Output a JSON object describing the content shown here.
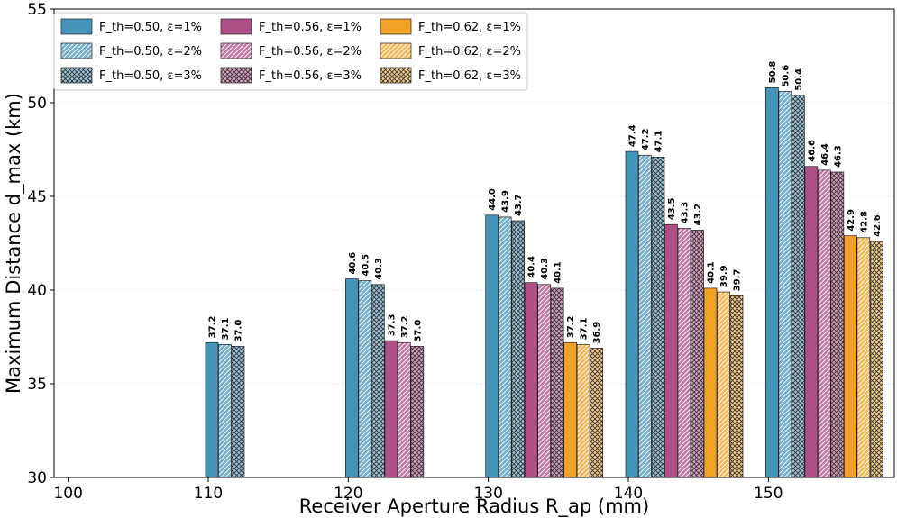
{
  "chart_data": {
    "type": "bar",
    "xlabel": "Receiver Aperture Radius R_ap (mm)",
    "ylabel": "Maximum Distance d_max (km)",
    "ylim": [
      30,
      55
    ],
    "yticks": [
      30,
      35,
      40,
      45,
      50,
      55
    ],
    "categories": [
      "100",
      "110",
      "120",
      "130",
      "140",
      "150"
    ],
    "grid": "horizontal",
    "legend": {
      "placement": "top-left",
      "columns": 3
    },
    "bar_labels": true,
    "series": [
      {
        "name": "F_th=0.50, ε=1%",
        "color": "#4493B8",
        "hatch": "none",
        "values": [
          null,
          37.2,
          40.6,
          44.0,
          47.4,
          50.8
        ]
      },
      {
        "name": "F_th=0.50, ε=2%",
        "color": "#4493B8",
        "hatch": "diag",
        "values": [
          null,
          37.1,
          40.5,
          43.9,
          47.2,
          50.6
        ]
      },
      {
        "name": "F_th=0.50, ε=3%",
        "color": "#4493B8",
        "hatch": "cross",
        "values": [
          null,
          37.0,
          40.3,
          43.7,
          47.1,
          50.4
        ]
      },
      {
        "name": "F_th=0.56, ε=1%",
        "color": "#AE4F86",
        "hatch": "none",
        "values": [
          null,
          null,
          37.3,
          40.4,
          43.5,
          46.6
        ]
      },
      {
        "name": "F_th=0.56, ε=2%",
        "color": "#AE4F86",
        "hatch": "diag",
        "values": [
          null,
          null,
          37.2,
          40.3,
          43.3,
          46.4
        ]
      },
      {
        "name": "F_th=0.56, ε=3%",
        "color": "#AE4F86",
        "hatch": "cross",
        "values": [
          null,
          null,
          37.0,
          40.1,
          43.2,
          46.3
        ]
      },
      {
        "name": "F_th=0.62, ε=1%",
        "color": "#F2A127",
        "hatch": "none",
        "values": [
          null,
          null,
          null,
          37.2,
          40.1,
          42.9
        ]
      },
      {
        "name": "F_th=0.62, ε=2%",
        "color": "#F2A127",
        "hatch": "diag",
        "values": [
          null,
          null,
          null,
          37.1,
          39.9,
          42.8
        ]
      },
      {
        "name": "F_th=0.62, ε=3%",
        "color": "#F2A127",
        "hatch": "cross",
        "values": [
          null,
          null,
          null,
          36.9,
          39.7,
          42.6
        ]
      }
    ]
  }
}
